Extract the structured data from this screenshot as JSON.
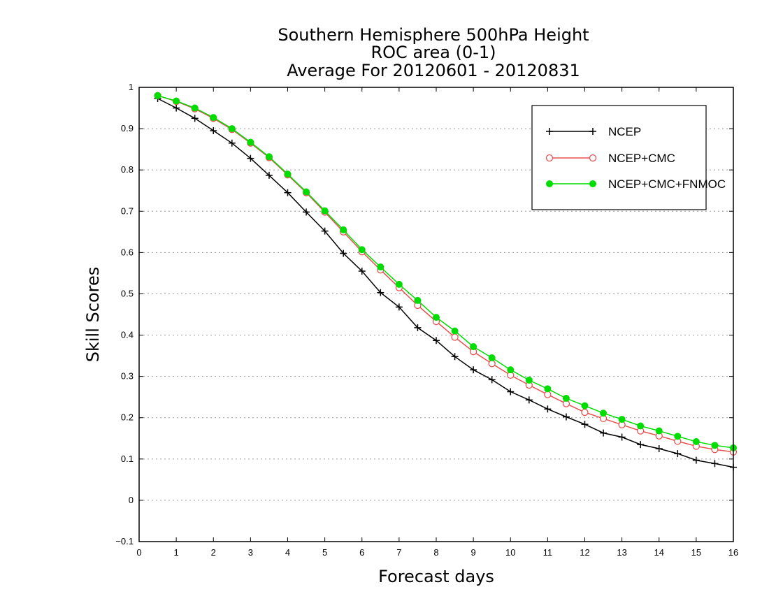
{
  "chart_data": {
    "type": "line",
    "title": [
      "Southern Hemisphere 500hPa Height",
      "ROC area (0-1)",
      "Average For 20120601 - 20120831"
    ],
    "xlabel": "Forecast days",
    "ylabel": "Skill Scores",
    "xlim": [
      0,
      16
    ],
    "ylim": [
      -0.1,
      1
    ],
    "xticks": [
      "0",
      "1",
      "2",
      "3",
      "4",
      "5",
      "6",
      "7",
      "8",
      "9",
      "10",
      "11",
      "12",
      "13",
      "14",
      "15",
      "16"
    ],
    "yticks": [
      "-0.1",
      "0",
      "0.1",
      "0.2",
      "0.3",
      "0.4",
      "0.5",
      "0.6",
      "0.7",
      "0.8",
      "0.9",
      "1"
    ],
    "grid": "horizontal dotted",
    "legend_position": "top-right",
    "x": [
      0.5,
      1,
      1.5,
      2,
      2.5,
      3,
      3.5,
      4,
      4.5,
      5,
      5.5,
      6,
      6.5,
      7,
      7.5,
      8,
      8.5,
      9,
      9.5,
      10,
      10.5,
      11,
      11.5,
      12,
      12.5,
      13,
      13.5,
      14,
      14.5,
      15,
      15.5,
      16
    ],
    "series": [
      {
        "name": "NCEP",
        "color": "#000000",
        "marker": "plus",
        "values": [
          0.973,
          0.95,
          0.925,
          0.895,
          0.865,
          0.828,
          0.787,
          0.745,
          0.698,
          0.652,
          0.598,
          0.555,
          0.503,
          0.468,
          0.418,
          0.387,
          0.348,
          0.316,
          0.292,
          0.263,
          0.243,
          0.221,
          0.202,
          0.184,
          0.163,
          0.153,
          0.135,
          0.125,
          0.113,
          0.097,
          0.089,
          0.08
        ]
      },
      {
        "name": "NCEP+CMC",
        "color": "#e85050",
        "marker": "open-circle",
        "values": [
          0.98,
          0.966,
          0.948,
          0.925,
          0.898,
          0.865,
          0.83,
          0.788,
          0.745,
          0.698,
          0.65,
          0.602,
          0.558,
          0.515,
          0.472,
          0.433,
          0.395,
          0.36,
          0.331,
          0.303,
          0.279,
          0.256,
          0.234,
          0.213,
          0.198,
          0.183,
          0.168,
          0.156,
          0.143,
          0.131,
          0.123,
          0.117
        ]
      },
      {
        "name": "NCEP+CMC+FNMOC",
        "color": "#00dd00",
        "marker": "filled-circle",
        "values": [
          0.98,
          0.967,
          0.95,
          0.927,
          0.9,
          0.867,
          0.832,
          0.79,
          0.747,
          0.701,
          0.655,
          0.607,
          0.565,
          0.523,
          0.484,
          0.443,
          0.41,
          0.372,
          0.345,
          0.316,
          0.291,
          0.27,
          0.247,
          0.229,
          0.211,
          0.196,
          0.18,
          0.168,
          0.155,
          0.142,
          0.133,
          0.127
        ]
      }
    ]
  }
}
